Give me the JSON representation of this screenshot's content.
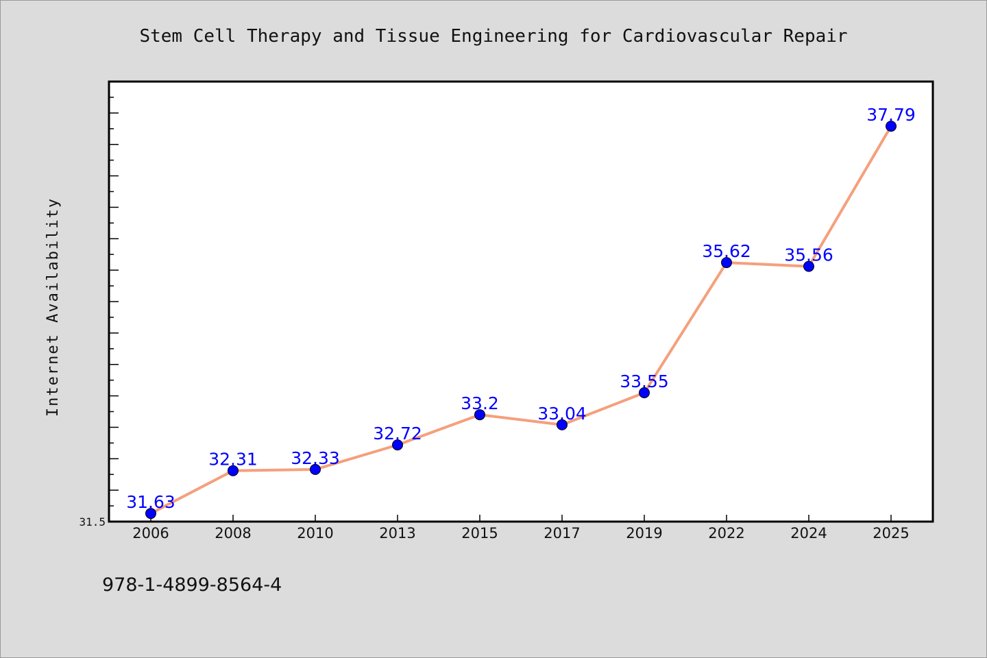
{
  "chart_data": {
    "type": "line",
    "title": "Stem Cell Therapy and Tissue Engineering for Cardiovascular Repair",
    "xlabel": "",
    "ylabel": "Internet Availability",
    "categories": [
      "2006",
      "2008",
      "2010",
      "2013",
      "2015",
      "2017",
      "2019",
      "2022",
      "2024",
      "2025"
    ],
    "series": [
      {
        "values": [
          31.63,
          32.31,
          32.33,
          32.72,
          33.2,
          33.04,
          33.55,
          35.62,
          35.56,
          37.79
        ],
        "labels": [
          "31.63",
          "32.31",
          "32.33",
          "32.72",
          "33.2",
          "33.04",
          "33.55",
          "35.62",
          "35.56",
          "37.79"
        ],
        "line_color": "#f4a07c",
        "marker_color": "#0000ff"
      }
    ],
    "ylim": [
      31.5,
      38.5
    ],
    "yticks_labeled": [
      "31.5"
    ],
    "grid": false,
    "legend": "none"
  },
  "caption": "978-1-4899-8564-4",
  "colors": {
    "background": "#dcdcdc",
    "plot_area": "#ffffff",
    "label_color": "#0000ff"
  }
}
